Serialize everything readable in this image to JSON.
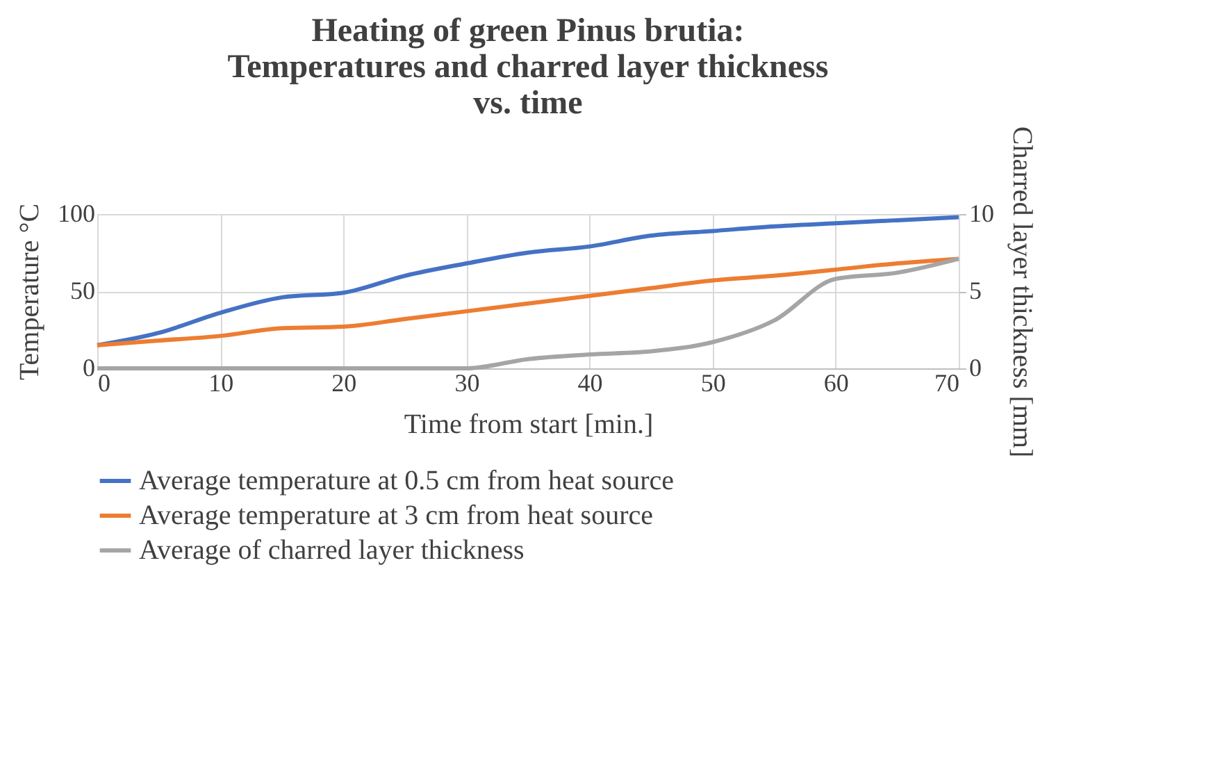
{
  "chart_data": {
    "type": "line",
    "title": "Heating of green Pinus brutia:\nTemperatures and charred layer thickness\nvs. time",
    "x": [
      0,
      5,
      10,
      15,
      20,
      25,
      30,
      35,
      40,
      45,
      50,
      55,
      60,
      65,
      70
    ],
    "xlabel": "Time from start [min.]",
    "ylabel": "Temperature °C",
    "y2label": "Charred layer thickness [mm]",
    "xlim": [
      0,
      70
    ],
    "xticks": [
      0,
      10,
      20,
      30,
      40,
      50,
      60,
      70
    ],
    "ylim": [
      0,
      100
    ],
    "yticks": [
      0,
      50,
      100
    ],
    "y2lim": [
      0,
      10
    ],
    "y2ticks": [
      0,
      5,
      10
    ],
    "grid": true,
    "legend": "bottom",
    "marker": "none",
    "line_style": "solid",
    "series": [
      {
        "name": "Average temperature at 0.5 cm from heat source",
        "color": "#4472c4",
        "values": [
          15,
          23,
          36,
          46,
          49,
          60,
          68,
          75,
          79,
          86,
          89,
          92,
          94,
          96,
          98
        ]
      },
      {
        "name": "Average temperature at 3 cm from heat source",
        "color": "#ed7d31",
        "values": [
          15,
          18,
          21,
          26,
          27,
          32,
          37,
          42,
          47,
          52,
          57,
          60,
          64,
          68,
          71
        ]
      },
      {
        "name": "Average of charred layer thickness",
        "color": "#a5a5a5",
        "axis": "y2",
        "values": [
          0,
          0,
          0,
          0,
          0,
          0,
          0,
          0.6,
          0.9,
          1.1,
          1.7,
          3.1,
          5.8,
          6.2,
          7.1
        ]
      }
    ]
  }
}
